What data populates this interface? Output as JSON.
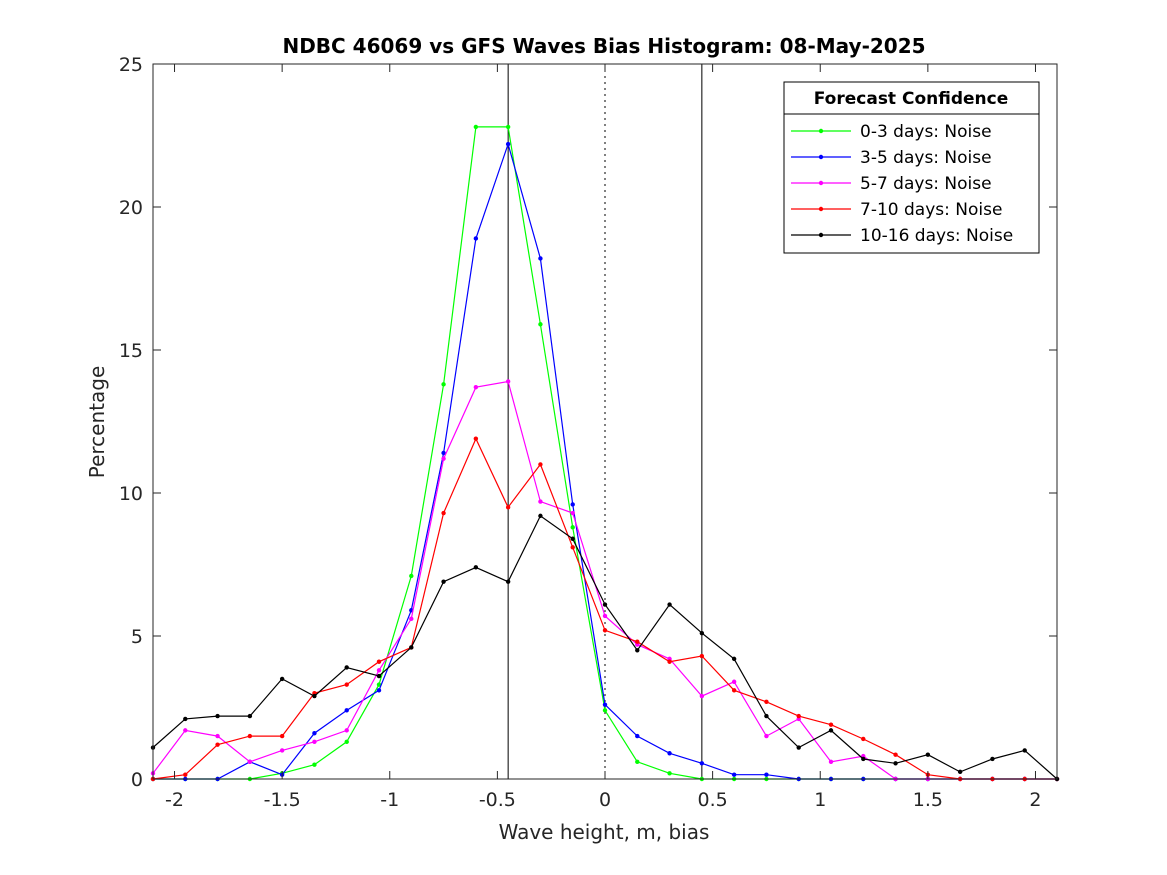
{
  "chart_data": {
    "type": "line",
    "title": "NDBC 46069 vs GFS Waves Bias Histogram: 08-May-2025",
    "xlabel": "Wave height, m, bias",
    "ylabel": "Percentage",
    "xlim": [
      -2.1,
      2.1
    ],
    "ylim": [
      0,
      25
    ],
    "xticks": [
      -2,
      -1.5,
      -1,
      -0.5,
      0,
      0.5,
      1,
      1.5,
      2
    ],
    "xtick_labels": [
      "-2",
      "-1.5",
      "-1",
      "-0.5",
      "0",
      "0.5",
      "1",
      "1.5",
      "2"
    ],
    "yticks": [
      0,
      5,
      10,
      15,
      20,
      25
    ],
    "ytick_labels": [
      "0",
      "5",
      "10",
      "15",
      "20",
      "25"
    ],
    "grid": false,
    "legend": {
      "title": "Forecast Confidence",
      "placement": "top-right"
    },
    "reference_lines": [
      {
        "x": -0.45,
        "style": "solid",
        "color": "#000000"
      },
      {
        "x": 0,
        "style": "dotted",
        "color": "#000000"
      },
      {
        "x": 0.45,
        "style": "solid",
        "color": "#000000"
      }
    ],
    "x": [
      -2.1,
      -1.95,
      -1.8,
      -1.65,
      -1.5,
      -1.35,
      -1.2,
      -1.05,
      -0.9,
      -0.75,
      -0.6,
      -0.45,
      -0.3,
      -0.15,
      0,
      0.15,
      0.3,
      0.45,
      0.6,
      0.75,
      0.9,
      1.05,
      1.2,
      1.35,
      1.5,
      1.65,
      1.8,
      1.95,
      2.1
    ],
    "series": [
      {
        "name": "0-3 days: Noise",
        "color": "#00ff00",
        "values": [
          0,
          0,
          0,
          0,
          0.2,
          0.5,
          1.3,
          3.3,
          7.1,
          13.8,
          22.8,
          22.8,
          15.9,
          8.8,
          2.4,
          0.6,
          0.2,
          0,
          0,
          0,
          0,
          0,
          0,
          0,
          0,
          0,
          0,
          0,
          0
        ]
      },
      {
        "name": "3-5 days: Noise",
        "color": "#0000ff",
        "values": [
          0,
          0,
          0,
          0.6,
          0.15,
          1.6,
          2.4,
          3.1,
          5.9,
          11.4,
          18.9,
          22.2,
          18.2,
          9.6,
          2.6,
          1.5,
          0.9,
          0.55,
          0.15,
          0.15,
          0,
          0,
          0,
          0,
          0,
          0,
          0,
          0,
          0
        ]
      },
      {
        "name": "5-7 days: Noise",
        "color": "#ff00ff",
        "values": [
          0.2,
          1.7,
          1.5,
          0.6,
          1.0,
          1.3,
          1.7,
          3.8,
          5.6,
          11.2,
          13.7,
          13.9,
          9.7,
          9.3,
          5.7,
          4.7,
          4.2,
          2.9,
          3.4,
          1.5,
          2.1,
          0.6,
          0.8,
          0,
          0,
          0,
          0,
          0,
          0
        ]
      },
      {
        "name": "7-10 days: Noise",
        "color": "#ff0000",
        "values": [
          0,
          0.15,
          1.2,
          1.5,
          1.5,
          3.0,
          3.3,
          4.1,
          4.6,
          9.3,
          11.9,
          9.5,
          11.0,
          8.1,
          5.2,
          4.8,
          4.1,
          4.3,
          3.1,
          2.7,
          2.2,
          1.9,
          1.4,
          0.85,
          0.15,
          0,
          0,
          0,
          0
        ]
      },
      {
        "name": "10-16 days: Noise",
        "color": "#000000",
        "values": [
          1.1,
          2.1,
          2.2,
          2.2,
          3.5,
          2.9,
          3.9,
          3.6,
          4.6,
          6.9,
          7.4,
          6.9,
          9.2,
          8.4,
          6.1,
          4.5,
          6.1,
          5.1,
          4.2,
          2.2,
          1.1,
          1.7,
          0.7,
          0.55,
          0.85,
          0.25,
          0.7,
          1.0,
          0
        ]
      }
    ]
  }
}
